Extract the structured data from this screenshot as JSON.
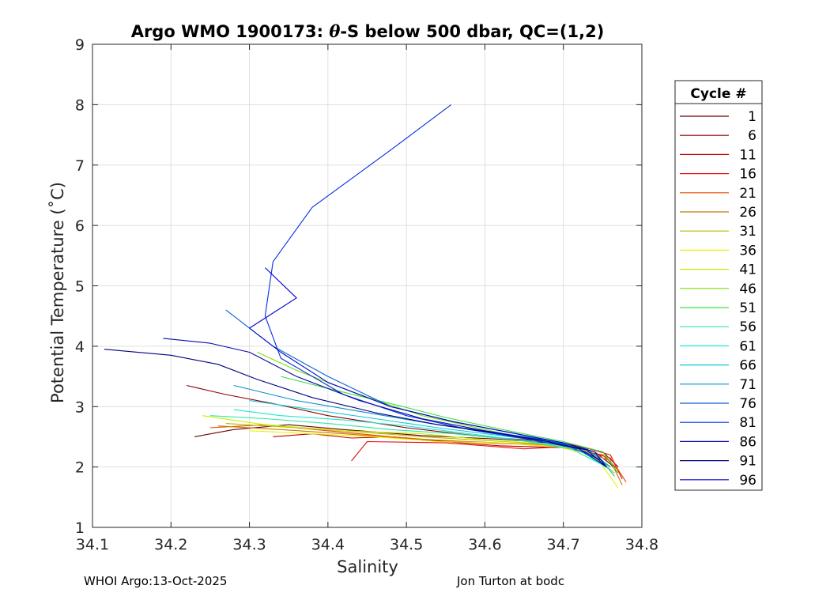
{
  "chart_data": {
    "type": "line",
    "title": "Argo WMO 1900173: θ-S below 500 dbar,  QC=(1,2)",
    "title_parts": {
      "pre": "Argo WMO 1900173: ",
      "theta": "θ",
      "post": "-S below 500 dbar,  QC=(1,2)"
    },
    "xlabel": "Salinity",
    "ylabel": "Potential Temperature (˚C)",
    "xlim": [
      34.1,
      34.8
    ],
    "ylim": [
      1,
      9
    ],
    "xticks": [
      "34.1",
      "34.2",
      "34.3",
      "34.4",
      "34.5",
      "34.6",
      "34.7",
      "34.8"
    ],
    "yticks": [
      "1",
      "2",
      "3",
      "4",
      "5",
      "6",
      "7",
      "8",
      "9"
    ],
    "grid": true,
    "legend": {
      "title": "Cycle #",
      "placement": "right-outside",
      "entries": [
        {
          "label": "1",
          "color": "#6b0000"
        },
        {
          "label": "6",
          "color": "#8f0000"
        },
        {
          "label": "11",
          "color": "#c00000"
        },
        {
          "label": "16",
          "color": "#e01010"
        },
        {
          "label": "21",
          "color": "#e64a00"
        },
        {
          "label": "26",
          "color": "#c47a00"
        },
        {
          "label": "31",
          "color": "#b8b800"
        },
        {
          "label": "36",
          "color": "#f0f000"
        },
        {
          "label": "41",
          "color": "#c8f000"
        },
        {
          "label": "46",
          "color": "#7ee000"
        },
        {
          "label": "51",
          "color": "#3ee03e"
        },
        {
          "label": "56",
          "color": "#30e6a0"
        },
        {
          "label": "61",
          "color": "#20e6d2"
        },
        {
          "label": "66",
          "color": "#10c8d8"
        },
        {
          "label": "71",
          "color": "#0a90c8"
        },
        {
          "label": "76",
          "color": "#0a60d8"
        },
        {
          "label": "81",
          "color": "#0030e0"
        },
        {
          "label": "86",
          "color": "#0a0aa8"
        },
        {
          "label": "91",
          "color": "#000080"
        },
        {
          "label": "96",
          "color": "#0000c8"
        }
      ]
    },
    "series": [
      {
        "name": "cycle 1",
        "color": "#6b0000",
        "x": [
          34.23,
          34.28,
          34.35,
          34.42,
          34.52,
          34.62,
          34.7,
          34.74,
          34.76,
          34.77
        ],
        "y": [
          2.5,
          2.62,
          2.7,
          2.62,
          2.52,
          2.46,
          2.38,
          2.25,
          2.05,
          1.9
        ]
      },
      {
        "name": "cycle 6",
        "color": "#8f0000",
        "x": [
          34.22,
          34.27,
          34.33,
          34.4,
          34.5,
          34.6,
          34.7,
          34.75,
          34.77
        ],
        "y": [
          3.35,
          3.2,
          3.05,
          2.85,
          2.65,
          2.5,
          2.4,
          2.25,
          2.0
        ]
      },
      {
        "name": "cycle 11",
        "color": "#c00000",
        "x": [
          34.33,
          34.38,
          34.43,
          34.48,
          34.55,
          34.62,
          34.7,
          34.75,
          34.77
        ],
        "y": [
          2.5,
          2.55,
          2.48,
          2.5,
          2.42,
          2.35,
          2.32,
          2.2,
          1.95
        ]
      },
      {
        "name": "cycle 16",
        "color": "#e01010",
        "x": [
          34.43,
          34.45,
          34.55,
          34.65,
          34.72,
          34.76,
          34.775
        ],
        "y": [
          2.1,
          2.42,
          2.4,
          2.3,
          2.35,
          2.2,
          1.8
        ]
      },
      {
        "name": "cycle 21",
        "color": "#e64a00",
        "x": [
          34.25,
          34.32,
          34.4,
          34.48,
          34.56,
          34.64,
          34.71,
          34.76,
          34.78
        ],
        "y": [
          2.65,
          2.7,
          2.6,
          2.5,
          2.42,
          2.38,
          2.32,
          2.15,
          1.75
        ]
      },
      {
        "name": "cycle 26",
        "color": "#c47a00",
        "x": [
          34.26,
          34.34,
          34.42,
          34.5,
          34.58,
          34.66,
          34.72,
          34.76,
          34.775
        ],
        "y": [
          2.68,
          2.62,
          2.55,
          2.47,
          2.42,
          2.38,
          2.3,
          2.1,
          1.7
        ]
      },
      {
        "name": "cycle 31",
        "color": "#b8b800",
        "x": [
          34.27,
          34.36,
          34.44,
          34.52,
          34.6,
          34.68,
          34.73,
          34.765
        ],
        "y": [
          2.72,
          2.65,
          2.58,
          2.5,
          2.44,
          2.38,
          2.28,
          1.9
        ]
      },
      {
        "name": "cycle 36",
        "color": "#f0f000",
        "x": [
          34.3,
          34.38,
          34.46,
          34.54,
          34.62,
          34.69,
          34.74,
          34.77
        ],
        "y": [
          2.6,
          2.55,
          2.5,
          2.42,
          2.4,
          2.34,
          2.2,
          1.65
        ]
      },
      {
        "name": "cycle 41",
        "color": "#c8f000",
        "x": [
          34.24,
          34.32,
          34.42,
          34.52,
          34.6,
          34.68,
          34.74,
          34.765
        ],
        "y": [
          2.85,
          2.7,
          2.6,
          2.55,
          2.45,
          2.38,
          2.25,
          1.85
        ]
      },
      {
        "name": "cycle 46",
        "color": "#7ee000",
        "x": [
          34.31,
          34.36,
          34.44,
          34.52,
          34.59,
          34.66,
          34.72,
          34.76
        ],
        "y": [
          3.9,
          3.6,
          3.2,
          2.85,
          2.65,
          2.45,
          2.3,
          2.0
        ]
      },
      {
        "name": "cycle 51",
        "color": "#3ee03e",
        "x": [
          34.34,
          34.4,
          34.48,
          34.55,
          34.63,
          34.7,
          34.75,
          34.77
        ],
        "y": [
          3.5,
          3.3,
          3.05,
          2.82,
          2.6,
          2.42,
          2.25,
          1.9
        ]
      },
      {
        "name": "cycle 56",
        "color": "#30e6a0",
        "x": [
          34.25,
          34.32,
          34.4,
          34.48,
          34.56,
          34.64,
          34.71,
          34.755
        ],
        "y": [
          2.85,
          2.8,
          2.72,
          2.62,
          2.55,
          2.45,
          2.3,
          2.0
        ]
      },
      {
        "name": "cycle 61",
        "color": "#20e6d2",
        "x": [
          34.28,
          34.34,
          34.42,
          34.5,
          34.58,
          34.66,
          34.72,
          34.76
        ],
        "y": [
          2.95,
          2.85,
          2.78,
          2.68,
          2.55,
          2.42,
          2.28,
          1.95
        ]
      },
      {
        "name": "cycle 66",
        "color": "#10c8d8",
        "x": [
          34.3,
          34.38,
          34.46,
          34.54,
          34.62,
          34.69,
          34.74,
          34.765
        ],
        "y": [
          3.1,
          2.95,
          2.8,
          2.65,
          2.52,
          2.4,
          2.25,
          1.85
        ]
      },
      {
        "name": "cycle 71",
        "color": "#0a90c8",
        "x": [
          34.28,
          34.36,
          34.45,
          34.53,
          34.61,
          34.68,
          34.73,
          34.76
        ],
        "y": [
          3.35,
          3.1,
          2.9,
          2.72,
          2.58,
          2.44,
          2.3,
          2.0
        ]
      },
      {
        "name": "cycle 76",
        "color": "#0a60d8",
        "x": [
          34.27,
          34.33,
          34.4,
          34.48,
          34.56,
          34.64,
          34.7,
          34.75
        ],
        "y": [
          4.6,
          4.0,
          3.5,
          3.0,
          2.75,
          2.55,
          2.38,
          2.1
        ]
      },
      {
        "name": "cycle 81",
        "color": "#0030e0",
        "x": [
          34.557,
          34.48,
          34.38,
          34.33,
          34.32,
          34.34,
          34.42,
          34.5,
          34.58,
          34.66,
          34.72,
          34.75
        ],
        "y": [
          8.0,
          7.25,
          6.3,
          5.4,
          4.5,
          3.8,
          3.2,
          2.85,
          2.62,
          2.45,
          2.3,
          2.1
        ]
      },
      {
        "name": "cycle 86",
        "color": "#0a0aa8",
        "x": [
          34.19,
          34.25,
          34.3,
          34.36,
          34.44,
          34.52,
          34.6,
          34.67,
          34.72,
          34.755
        ],
        "y": [
          4.13,
          4.05,
          3.9,
          3.5,
          3.1,
          2.8,
          2.6,
          2.45,
          2.3,
          2.0
        ]
      },
      {
        "name": "cycle 91",
        "color": "#000080",
        "x": [
          34.115,
          34.2,
          34.26,
          34.31,
          34.38,
          34.46,
          34.54,
          34.62,
          34.68,
          34.73,
          34.755
        ],
        "y": [
          3.95,
          3.85,
          3.7,
          3.45,
          3.15,
          2.9,
          2.7,
          2.55,
          2.42,
          2.28,
          2.0
        ]
      },
      {
        "name": "cycle 96",
        "color": "#0000c8",
        "x": [
          34.32,
          34.36,
          34.3,
          34.34,
          34.4,
          34.48,
          34.56,
          34.64,
          34.7,
          34.74,
          34.755
        ],
        "y": [
          5.3,
          4.8,
          4.3,
          3.9,
          3.4,
          3.0,
          2.75,
          2.55,
          2.4,
          2.25,
          2.0
        ]
      }
    ]
  },
  "footer": {
    "left": "WHOI Argo:13-Oct-2025",
    "right": "Jon Turton at bodc"
  }
}
